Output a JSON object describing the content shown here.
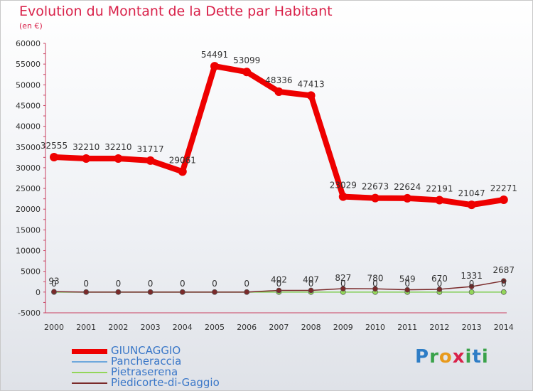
{
  "title": "Evolution du Montant de la Dette par Habitant",
  "subtitle": "(en €)",
  "logo": "Proxiti",
  "chart_data": {
    "type": "line",
    "title": "Evolution du Montant de la Dette par Habitant",
    "subtitle": "(en €)",
    "x": [
      "2000",
      "2001",
      "2002",
      "2003",
      "2004",
      "2005",
      "2006",
      "2007",
      "2008",
      "2009",
      "2010",
      "2011",
      "2012",
      "2013",
      "2014"
    ],
    "ylim": [
      -5000,
      60000
    ],
    "yticks": [
      -5000,
      0,
      5000,
      10000,
      15000,
      20000,
      25000,
      30000,
      35000,
      40000,
      45000,
      50000,
      55000,
      60000
    ],
    "grid": false,
    "legend_position": "bottom-left",
    "series": [
      {
        "name": "GIUNCAGGIO",
        "color": "#ee0000",
        "values": [
          32555,
          32210,
          32210,
          31717,
          29061,
          54491,
          53099,
          48336,
          47413,
          23029,
          22673,
          22624,
          22191,
          21047,
          22271
        ],
        "labels": [
          "32555",
          "32210",
          "32210",
          "31717",
          "29061",
          "54491",
          "53099",
          "48336",
          "47413",
          "23029",
          "22673",
          "22624",
          "22191",
          "21047",
          "22271"
        ]
      },
      {
        "name": "Pancheraccia",
        "color": "#6fa8dc",
        "values": [
          0,
          0,
          0,
          0,
          0,
          0,
          0,
          0,
          0,
          0,
          0,
          0,
          0,
          0,
          0
        ],
        "labels": [
          "0",
          "0",
          "0",
          "0",
          "0",
          "0",
          "0",
          "0",
          "0",
          "0",
          "0",
          "0",
          "0",
          "0",
          "0"
        ]
      },
      {
        "name": "Pietraserena",
        "color": "#93d65a",
        "values": [
          0,
          0,
          0,
          0,
          0,
          0,
          0,
          0,
          0,
          0,
          0,
          0,
          0,
          0,
          0
        ],
        "labels": []
      },
      {
        "name": "Piedicorte-di-Gaggio",
        "color": "#7a2a2a",
        "values": [
          93,
          0,
          0,
          0,
          0,
          0,
          0,
          402,
          407,
          827,
          780,
          549,
          670,
          1331,
          2687
        ],
        "labels": [
          "93",
          "",
          "",
          "",
          "",
          "",
          "",
          "402",
          "407",
          "827",
          "780",
          "549",
          "670",
          "1331",
          "2687"
        ]
      }
    ]
  }
}
